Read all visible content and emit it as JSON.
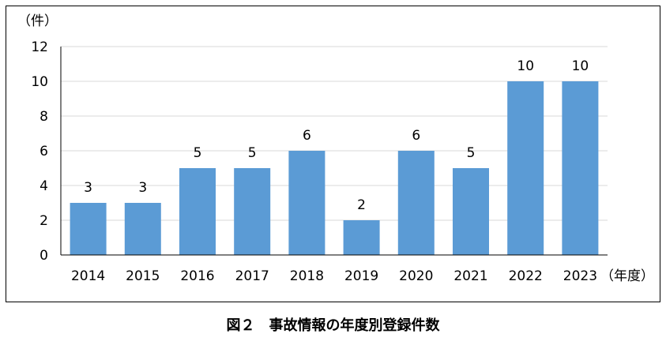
{
  "chart_data": {
    "type": "bar",
    "categories": [
      "2014",
      "2015",
      "2016",
      "2017",
      "2018",
      "2019",
      "2020",
      "2021",
      "2022",
      "2023"
    ],
    "values": [
      3,
      3,
      5,
      5,
      6,
      2,
      6,
      5,
      10,
      10
    ],
    "xlabel": "（年度）",
    "ylabel": "（件）",
    "ylim": [
      0,
      12
    ],
    "yticks": [
      0,
      2,
      4,
      6,
      8,
      10,
      12
    ],
    "grid": true,
    "legend": "none",
    "bar_color": "#5B9BD5",
    "grid_color": "#D9D9D9"
  },
  "caption": "図２　事故情報の年度別登録件数"
}
